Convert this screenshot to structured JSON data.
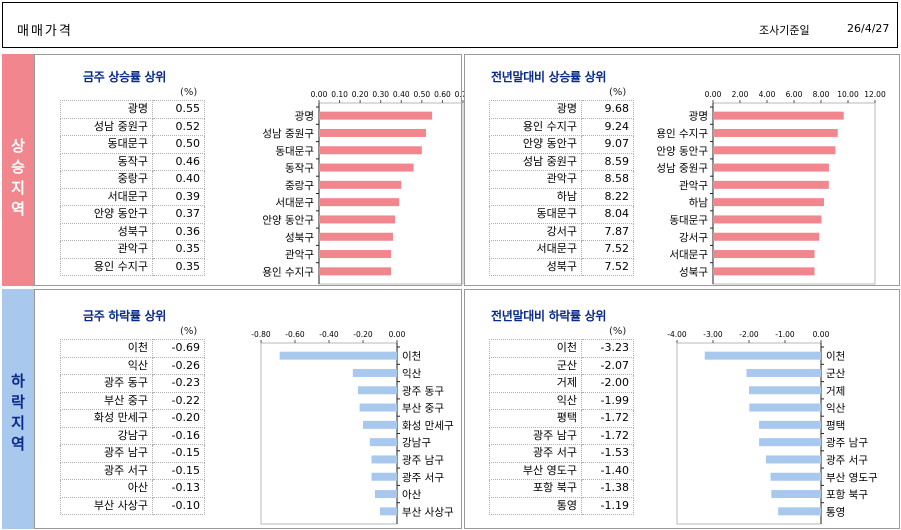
{
  "header": {
    "title": "매매가격",
    "date_label": "조사기준일",
    "date_value": "26/4/27"
  },
  "bands": {
    "rise": "상승지역",
    "fall": "하락지역"
  },
  "panels": [
    {
      "title": "금주 상승률 상위",
      "unit": "(%)"
    },
    {
      "title": "전년말대비 상승률 상위",
      "unit": "(%)"
    },
    {
      "title": "금주 하락률 상위",
      "unit": "(%)"
    },
    {
      "title": "전년말대비 하락률 상위",
      "unit": "(%)"
    }
  ],
  "chart_data": [
    {
      "type": "bar",
      "orientation": "horizontal",
      "title": "금주 상승률 상위",
      "bar_color": "#f2868e",
      "categories": [
        "광명",
        "성남 중원구",
        "동대문구",
        "동작구",
        "중랑구",
        "서대문구",
        "안양 동안구",
        "성북구",
        "관악구",
        "용인 수지구"
      ],
      "values": [
        0.55,
        0.52,
        0.5,
        0.46,
        0.4,
        0.39,
        0.37,
        0.36,
        0.35,
        0.35
      ],
      "value_labels": [
        "0.55",
        "0.52",
        "0.50",
        "0.46",
        "0.40",
        "0.39",
        "0.37",
        "0.36",
        "0.35",
        "0.35"
      ],
      "xlim": [
        0,
        0.7
      ],
      "ticks": [
        "0.00",
        "0.10",
        "0.20",
        "0.30",
        "0.40",
        "0.50",
        "0.60",
        "0.70"
      ],
      "grid": false
    },
    {
      "type": "bar",
      "orientation": "horizontal",
      "title": "전년말대비 상승률 상위",
      "bar_color": "#f2868e",
      "categories": [
        "광명",
        "용인 수지구",
        "안양 동안구",
        "성남 중원구",
        "관악구",
        "하남",
        "동대문구",
        "강서구",
        "서대문구",
        "성북구"
      ],
      "values": [
        9.68,
        9.24,
        9.07,
        8.59,
        8.58,
        8.22,
        8.04,
        7.87,
        7.52,
        7.52
      ],
      "value_labels": [
        "9.68",
        "9.24",
        "9.07",
        "8.59",
        "8.58",
        "8.22",
        "8.04",
        "7.87",
        "7.52",
        "7.52"
      ],
      "xlim": [
        0,
        12
      ],
      "ticks": [
        "0.00",
        "2.00",
        "4.00",
        "6.00",
        "8.00",
        "10.00",
        "12.00"
      ],
      "grid": false
    },
    {
      "type": "bar",
      "orientation": "horizontal",
      "title": "금주 하락률 상위",
      "bar_color": "#a8c8ee",
      "categories": [
        "이천",
        "익산",
        "광주 동구",
        "부산 중구",
        "화성 만세구",
        "강남구",
        "광주 남구",
        "광주 서구",
        "아산",
        "부산 사상구"
      ],
      "values": [
        -0.69,
        -0.26,
        -0.23,
        -0.22,
        -0.2,
        -0.16,
        -0.15,
        -0.15,
        -0.13,
        -0.1
      ],
      "value_labels": [
        "-0.69",
        "-0.26",
        "-0.23",
        "-0.22",
        "-0.20",
        "-0.16",
        "-0.15",
        "-0.15",
        "-0.13",
        "-0.10"
      ],
      "xlim": [
        -0.8,
        0
      ],
      "ticks": [
        "-0.80",
        "-0.60",
        "-0.40",
        "-0.20",
        "0.00"
      ],
      "grid": false
    },
    {
      "type": "bar",
      "orientation": "horizontal",
      "title": "전년말대비 하락률 상위",
      "bar_color": "#a8c8ee",
      "categories": [
        "이천",
        "군산",
        "거제",
        "익산",
        "평택",
        "광주 남구",
        "광주 서구",
        "부산 영도구",
        "포항 북구",
        "통영"
      ],
      "values": [
        -3.23,
        -2.07,
        -2.0,
        -1.99,
        -1.72,
        -1.72,
        -1.53,
        -1.4,
        -1.38,
        -1.19
      ],
      "value_labels": [
        "-3.23",
        "-2.07",
        "-2.00",
        "-1.99",
        "-1.72",
        "-1.72",
        "-1.53",
        "-1.40",
        "-1.38",
        "-1.19"
      ],
      "xlim": [
        -4,
        0
      ],
      "ticks": [
        "-4.00",
        "-3.00",
        "-2.00",
        "-1.00",
        "0.00"
      ],
      "grid": false
    }
  ]
}
